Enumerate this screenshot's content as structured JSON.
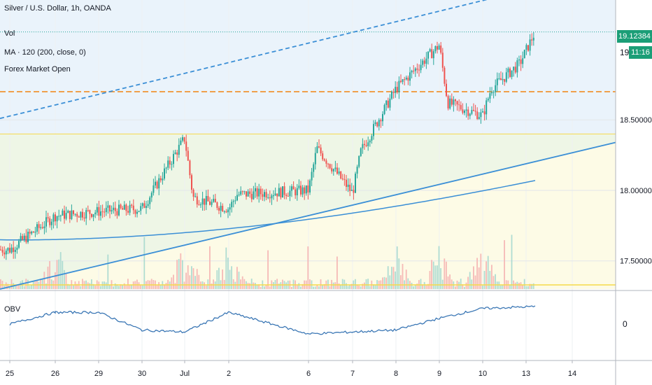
{
  "header": {
    "title": "Silver / U.S. Dollar, 1h, OANDA",
    "vol_label": "Vol",
    "ma_label": "MA · 120 (200, close, 0)",
    "session_label": "Forex Market Open"
  },
  "price_tags": {
    "last_price": "19.12384",
    "countdown": "11:16",
    "partial_label": "19"
  },
  "colors": {
    "up": "#26a69a",
    "down": "#ef5350",
    "trend": "#3b8fd6",
    "ma": "#3b8fd6",
    "obv": "#3b77b5",
    "level_orange": "#f0a04b",
    "level_yellow": "#f5d94a",
    "zone_blue": "#eaf3fb",
    "zone_green": "#eef6e6",
    "zone_yellow": "#fdfbe6",
    "tag_green": "#1b9e77"
  },
  "chart_data": [
    {
      "type": "candlestick",
      "title": "Silver / U.S. Dollar, 1h, OANDA",
      "x": [
        "25",
        "26",
        "29",
        "30",
        "Jul",
        "2",
        "6",
        "7",
        "8",
        "9",
        "10",
        "13",
        "14"
      ],
      "y_ticks": [
        "18.50000",
        "18.00000",
        "17.50000"
      ],
      "ylim": [
        17.3,
        19.35
      ],
      "key_points": [
        {
          "t": "25",
          "close": 17.58
        },
        {
          "t": "26",
          "close": 17.82
        },
        {
          "t": "29",
          "close": 17.85
        },
        {
          "t": "30",
          "close": 17.87
        },
        {
          "t": "Jul",
          "close": 18.37
        },
        {
          "t": "Jul",
          "close": 17.95
        },
        {
          "t": "2",
          "close": 17.87
        },
        {
          "t": "2",
          "close": 17.97
        },
        {
          "t": "6",
          "close": 18.0
        },
        {
          "t": "6",
          "close": 18.3
        },
        {
          "t": "7",
          "close": 17.98
        },
        {
          "t": "7",
          "close": 18.28
        },
        {
          "t": "8",
          "close": 18.72
        },
        {
          "t": "9",
          "close": 19.03
        },
        {
          "t": "9",
          "close": 18.62
        },
        {
          "t": "10",
          "close": 18.53
        },
        {
          "t": "10",
          "close": 18.72
        },
        {
          "t": "13",
          "close": 18.9
        },
        {
          "t": "13",
          "close": 19.12384
        }
      ],
      "moving_average": {
        "name": "MA · 120",
        "start": 17.65,
        "end": 18.07
      },
      "horizontal_levels": [
        {
          "value": 19.12384,
          "style": "dotted",
          "color": "#26a69a"
        },
        {
          "value": 18.7,
          "style": "dashed",
          "color": "#f0a04b"
        },
        {
          "value": 18.4,
          "style": "solid",
          "color": "#f5d94a"
        }
      ],
      "trend_lines": [
        {
          "style": "solid",
          "from": 17.3,
          "to": 18.34
        },
        {
          "style": "dashed",
          "from": 18.51,
          "to": 19.38
        }
      ],
      "volume": {
        "label": "Vol",
        "spikes": [
          "26",
          "Jul",
          "2",
          "8",
          "9",
          "10"
        ]
      }
    },
    {
      "type": "line",
      "title": "OBV",
      "y_ticks": [
        "0"
      ],
      "x": [
        "25",
        "26",
        "29",
        "30",
        "Jul",
        "2",
        "6",
        "7",
        "8",
        "9",
        "10",
        "13"
      ],
      "values": [
        0.0,
        0.6,
        0.6,
        -0.3,
        -0.4,
        0.6,
        -0.5,
        -0.4,
        -0.3,
        0.3,
        0.8,
        0.9
      ]
    }
  ]
}
